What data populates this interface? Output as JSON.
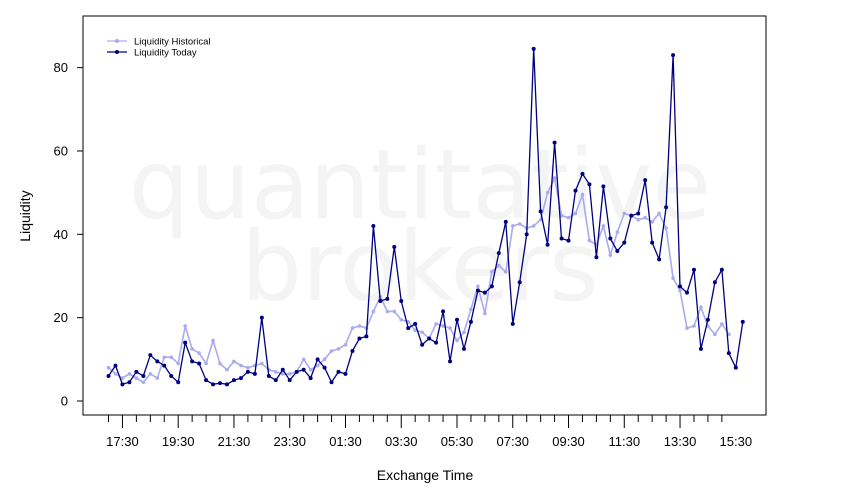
{
  "watermark": [
    "quantitative",
    "brokers"
  ],
  "colors": {
    "historical": "#aaaaee",
    "today": "#000080",
    "axis": "#000000"
  },
  "chart_data": {
    "type": "line",
    "xlabel": "Exchange Time",
    "ylabel": "Liquidity",
    "ylim": [
      -3,
      92
    ],
    "yticks": [
      0,
      20,
      40,
      60,
      80
    ],
    "xticks": [
      "17:30",
      "19:30",
      "21:30",
      "23:30",
      "01:30",
      "03:30",
      "05:30",
      "07:30",
      "09:30",
      "11:30",
      "13:30",
      "15:30"
    ],
    "x_start": "17:00",
    "x_step_minutes": 15,
    "legend_position": "top-left",
    "series": [
      {
        "name": "Liquidity Historical",
        "color": "#aaaaee",
        "values": [
          8,
          6.5,
          5.5,
          6.5,
          5.5,
          4.5,
          6.5,
          5.5,
          10.5,
          10.5,
          9,
          18,
          12.5,
          11.5,
          9,
          14.5,
          9,
          7.5,
          9.5,
          8.5,
          8,
          8.5,
          9,
          7.5,
          7,
          6.5,
          6.5,
          7,
          10,
          7.5,
          8.5,
          10,
          12,
          12.5,
          13.5,
          17.5,
          18,
          17.5,
          21.5,
          25,
          21.5,
          21.5,
          19.5,
          19,
          17,
          16.5,
          15,
          18.5,
          18,
          17.5,
          14.5,
          16.5,
          22,
          27.5,
          21,
          31,
          32.5,
          31,
          42,
          42.5,
          41.5,
          42,
          43.5,
          50,
          53.5,
          44.5,
          44,
          45,
          49.5,
          38.5,
          37.5,
          42,
          35,
          40.5,
          45,
          44.5,
          43.5,
          44,
          43,
          45,
          41.5,
          29.5,
          26.5,
          17.5,
          18,
          22.5,
          18,
          16,
          18.5,
          16
        ]
      },
      {
        "name": "Liquidity Today",
        "color": "#000080",
        "values": [
          6,
          8.5,
          4,
          4.5,
          7,
          6,
          11,
          9.5,
          8.5,
          6,
          4.5,
          14,
          9.5,
          9,
          5,
          4,
          4.3,
          4,
          5,
          5.5,
          7,
          6.5,
          20,
          6,
          5,
          7.5,
          5,
          7,
          7.5,
          5.5,
          10,
          8,
          4.5,
          7,
          6.5,
          12,
          15,
          15.5,
          42,
          24,
          24.5,
          37,
          24,
          17.5,
          18.5,
          13.5,
          15,
          14,
          21.5,
          9.5,
          19.5,
          12.5,
          19,
          26.5,
          26,
          27.5,
          35.5,
          43,
          18.5,
          28.5,
          40,
          84.5,
          45.5,
          37.5,
          62,
          39,
          38.5,
          50.5,
          54.5,
          52,
          34.5,
          51.5,
          39,
          36,
          38,
          44.5,
          45,
          53,
          38,
          34,
          46.5,
          83,
          27.5,
          26,
          31.5,
          12.5,
          19.5,
          28.5,
          31.5,
          11.5,
          8,
          19
        ]
      }
    ]
  }
}
